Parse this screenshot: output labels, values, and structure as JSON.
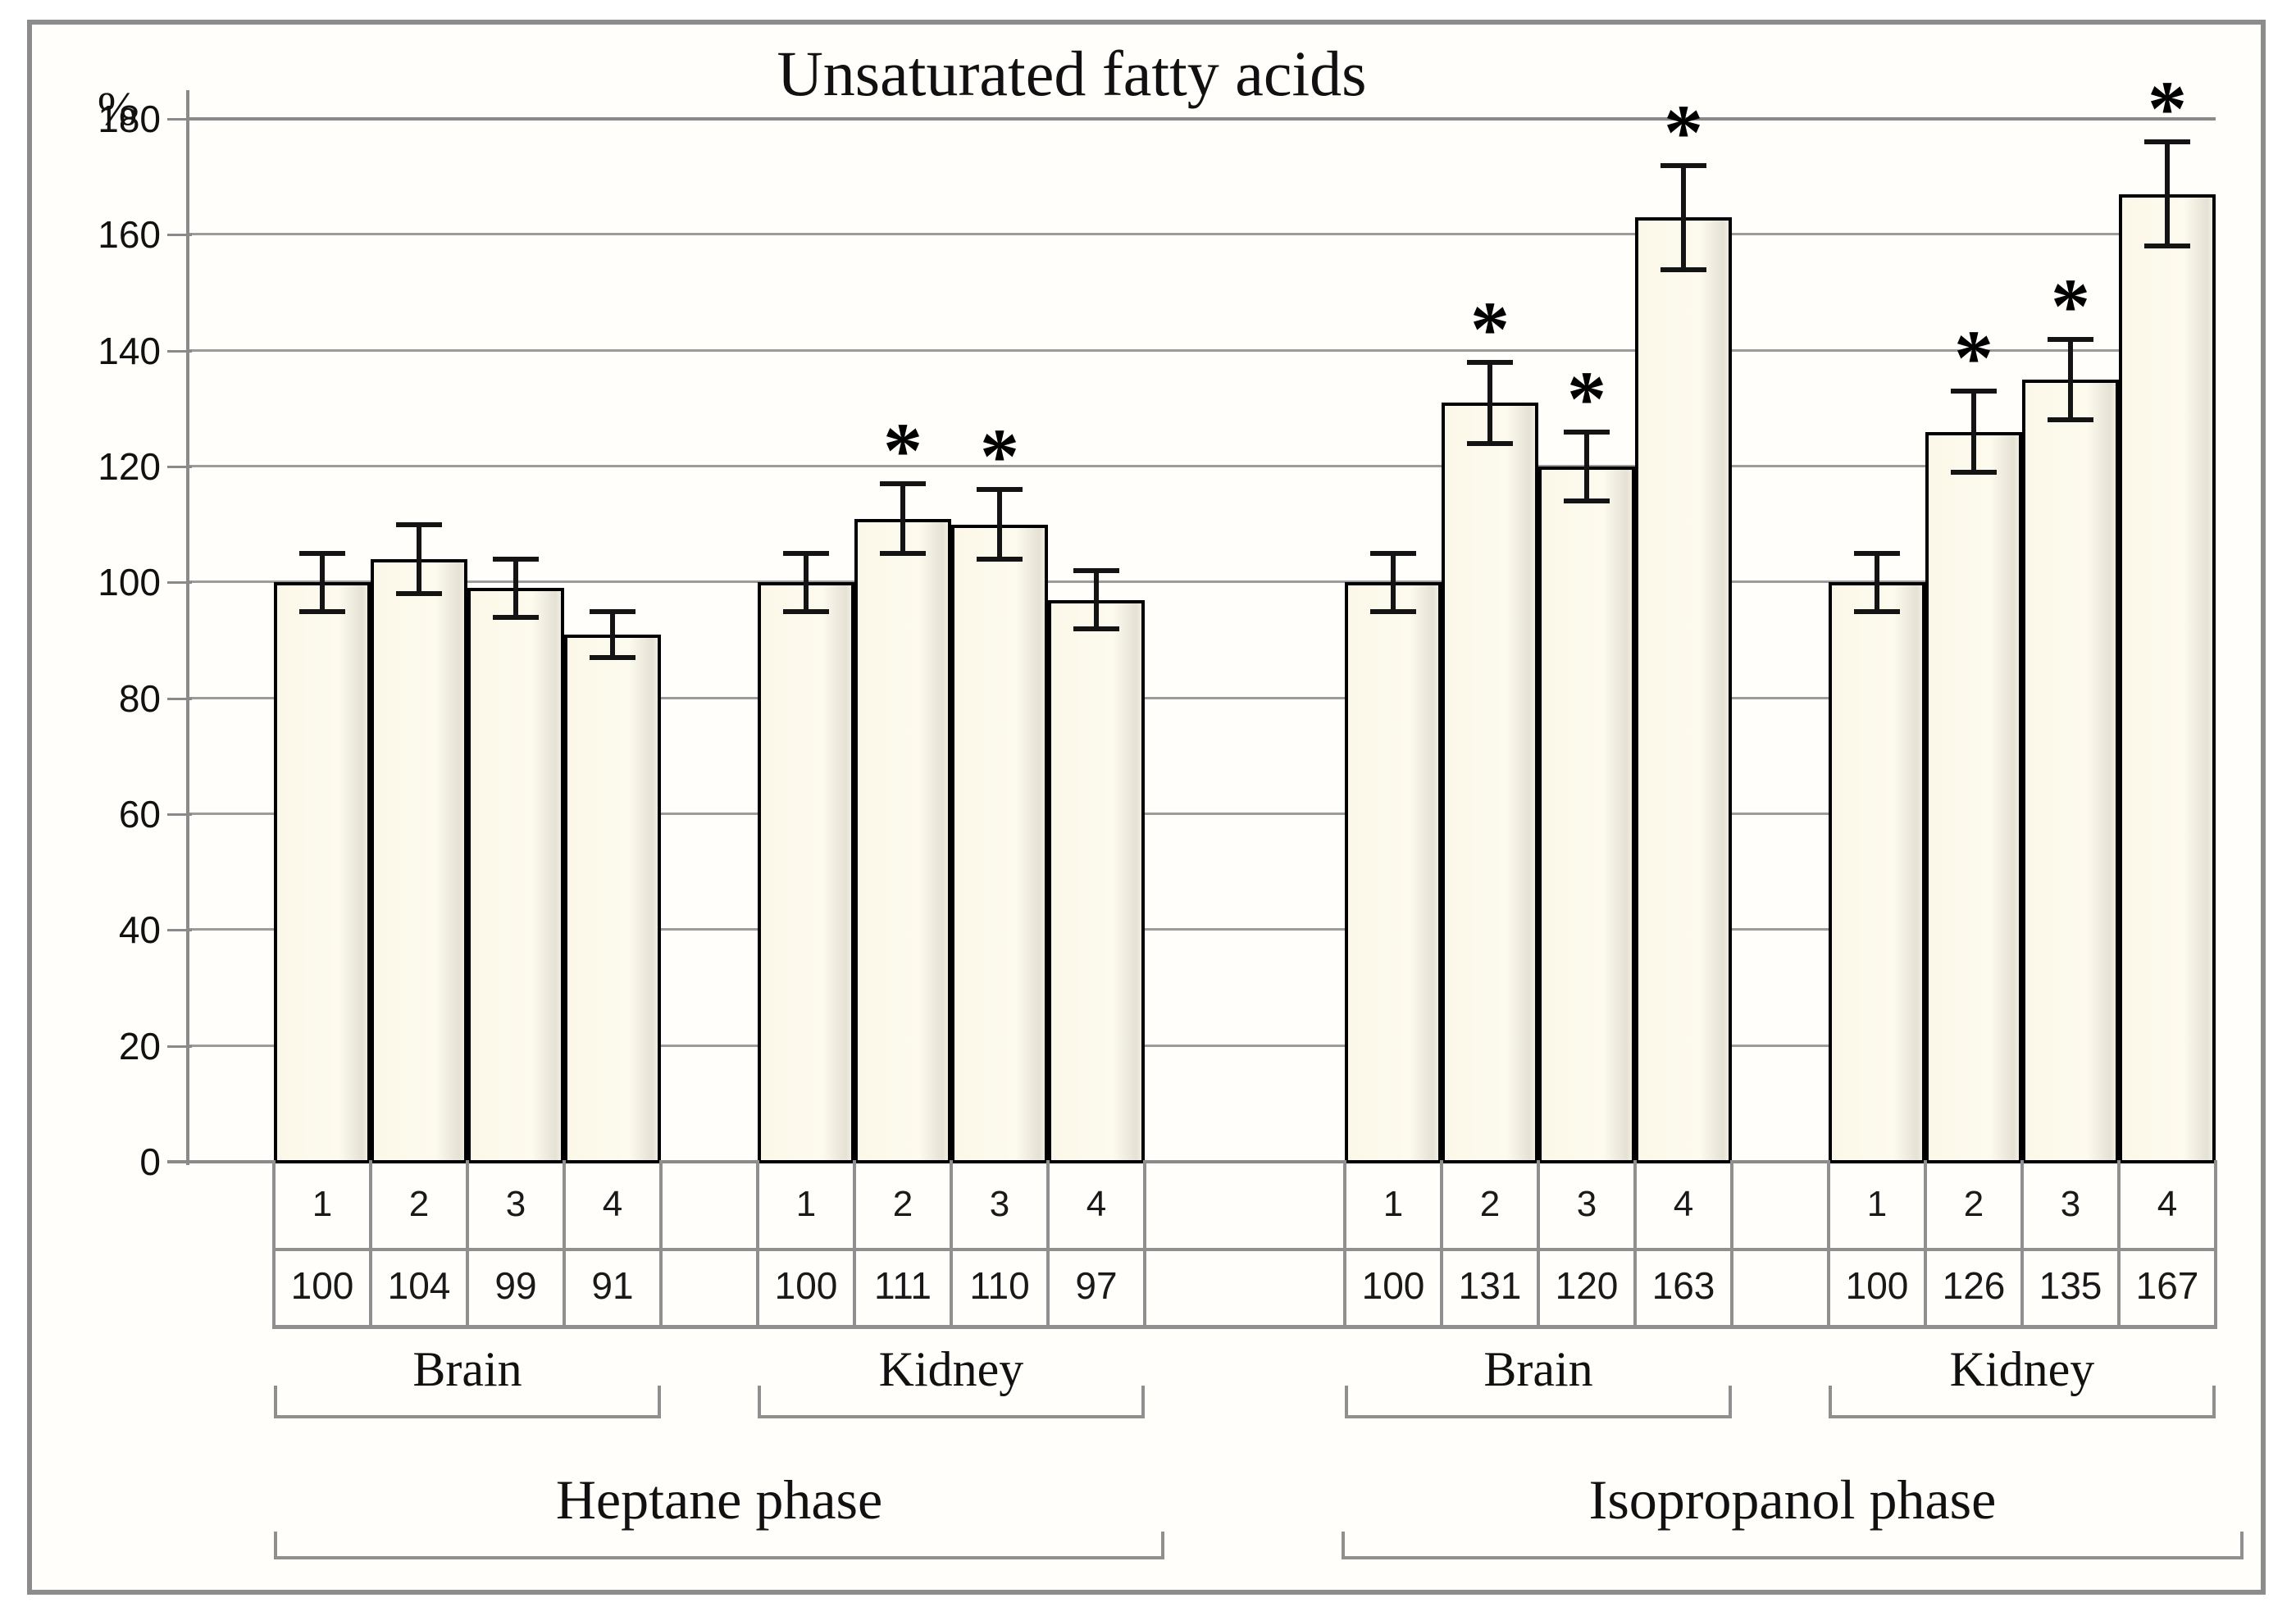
{
  "chart_data": {
    "type": "bar",
    "title": "Unsaturated fatty acids",
    "ylabel": "%",
    "ylim": [
      0,
      180
    ],
    "yticks": [
      0,
      20,
      40,
      60,
      80,
      100,
      120,
      140,
      160,
      180
    ],
    "grid": true,
    "legend": "none",
    "significance_marker": "*",
    "categories_per_group": [
      "1",
      "2",
      "3",
      "4"
    ],
    "groups": [
      {
        "phase": "Heptane phase",
        "organ": "Brain",
        "values": [
          100,
          104,
          99,
          91
        ],
        "errors": [
          5,
          6,
          5,
          4
        ],
        "significant": [
          false,
          false,
          false,
          false
        ]
      },
      {
        "phase": "Heptane phase",
        "organ": "Kidney",
        "values": [
          100,
          111,
          110,
          97
        ],
        "errors": [
          5,
          6,
          6,
          5
        ],
        "significant": [
          false,
          true,
          true,
          false
        ]
      },
      {
        "phase": "Isopropanol phase",
        "organ": "Brain",
        "values": [
          100,
          131,
          120,
          163
        ],
        "errors": [
          5,
          7,
          6,
          9
        ],
        "significant": [
          false,
          true,
          true,
          true
        ]
      },
      {
        "phase": "Isopropanol phase",
        "organ": "Kidney",
        "values": [
          100,
          126,
          135,
          167
        ],
        "errors": [
          5,
          7,
          7,
          9
        ],
        "significant": [
          false,
          true,
          true,
          true
        ]
      }
    ],
    "phases": [
      {
        "label": "Heptane phase",
        "organs": [
          "Brain",
          "Kidney"
        ]
      },
      {
        "label": "Isopropanol phase",
        "organs": [
          "Brain",
          "Kidney"
        ]
      }
    ],
    "colors": {
      "bar_fill": "#fbf8e9",
      "bar_border": "#000000",
      "grid_line": "#9b9b9b",
      "axis_line": "#8a8a8a",
      "table_border": "#8f8f8f",
      "frame_border": "#8c8c8c",
      "text": "#111111"
    }
  }
}
